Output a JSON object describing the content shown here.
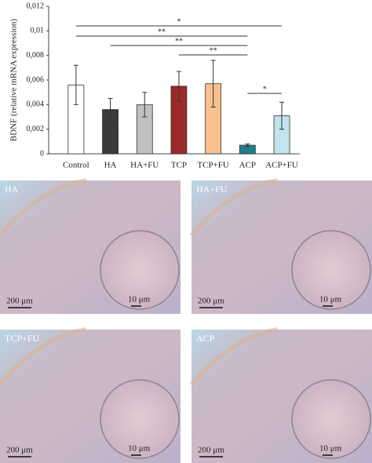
{
  "chart_data": {
    "type": "bar",
    "y_label": "BDNF (relative mRNA expression)",
    "categories": [
      "Control",
      "HA",
      "HA+FU",
      "TCP",
      "TCP+FU",
      "ACP",
      "ACP+FU"
    ],
    "values": [
      0.0056,
      0.0036,
      0.004,
      0.0055,
      0.0057,
      0.0007,
      0.0031
    ],
    "errors": [
      0.0016,
      0.0009,
      0.001,
      0.0012,
      0.0019,
      0.0001,
      0.0011
    ],
    "colors": [
      "#ffffff",
      "#3a3a3a",
      "#c0c0c0",
      "#9b2a2a",
      "#f7c08f",
      "#1f7f8f",
      "#c2e4ec"
    ],
    "ylim": [
      0,
      0.012
    ],
    "yticks": [
      0,
      {
        "value": 0.002,
        "label": "0,002"
      },
      {
        "value": 0.004,
        "label": "0,004"
      },
      {
        "value": 0.006,
        "label": "0,006"
      },
      {
        "value": 0.008,
        "label": "0,008"
      },
      {
        "value": 0.01,
        "label": "0,01"
      },
      {
        "value": 0.012,
        "label": "0,012"
      }
    ],
    "annotations": [
      {
        "label": "*",
        "from": "Control",
        "to": "ACP+FU"
      },
      {
        "label": "**",
        "from": "Control",
        "to": "ACP"
      },
      {
        "label": "**",
        "from": "HA",
        "to": "ACP"
      },
      {
        "label": "**",
        "from": "TCP",
        "to": "ACP"
      },
      {
        "label": "*",
        "from": "ACP",
        "to": "ACP+FU"
      }
    ]
  },
  "panels": [
    {
      "label": "HA",
      "scale_bar": "200 μm",
      "inset_scale_bar": "10 μm"
    },
    {
      "label": "HA+FU",
      "scale_bar": "200 μm",
      "inset_scale_bar": "10 μm"
    },
    {
      "label": "TCP+FU",
      "scale_bar": "200 μm",
      "inset_scale_bar": "10 μm"
    },
    {
      "label": "ACP",
      "scale_bar": "200 μm",
      "inset_scale_bar": "10 μm"
    }
  ]
}
